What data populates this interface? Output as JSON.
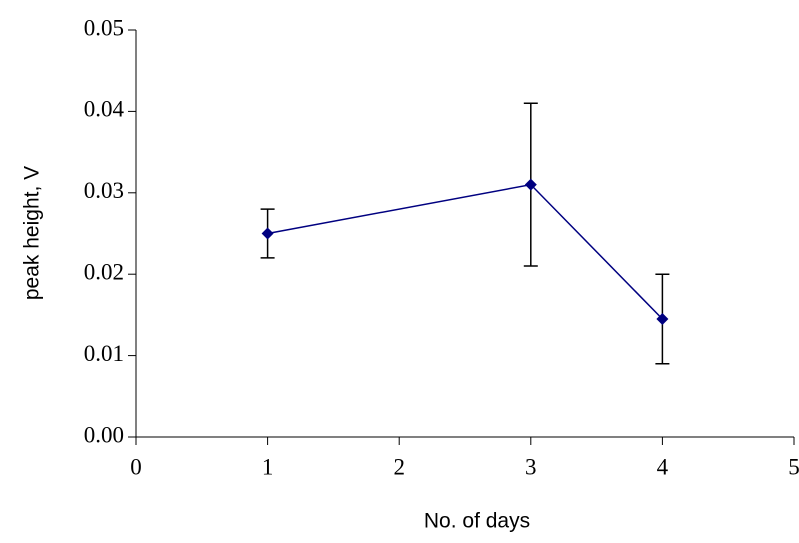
{
  "chart_data": {
    "type": "line",
    "xlabel": "No. of days",
    "ylabel": "peak height, V",
    "x": [
      1,
      3,
      4
    ],
    "series": [
      {
        "color": "#000080",
        "values": [
          0.025,
          0.031,
          0.0145
        ],
        "errors": [
          0.003,
          0.01,
          0.0055
        ],
        "error_color": "#000000"
      }
    ],
    "xlim": [
      0,
      5
    ],
    "xticks": [
      0,
      1,
      2,
      3,
      4,
      5
    ],
    "ylim": [
      0,
      0.05
    ],
    "yticks": [
      {
        "value": 0,
        "label": "0.00"
      },
      0.01,
      0.02,
      0.03,
      0.04,
      0.05
    ],
    "grid": false
  }
}
